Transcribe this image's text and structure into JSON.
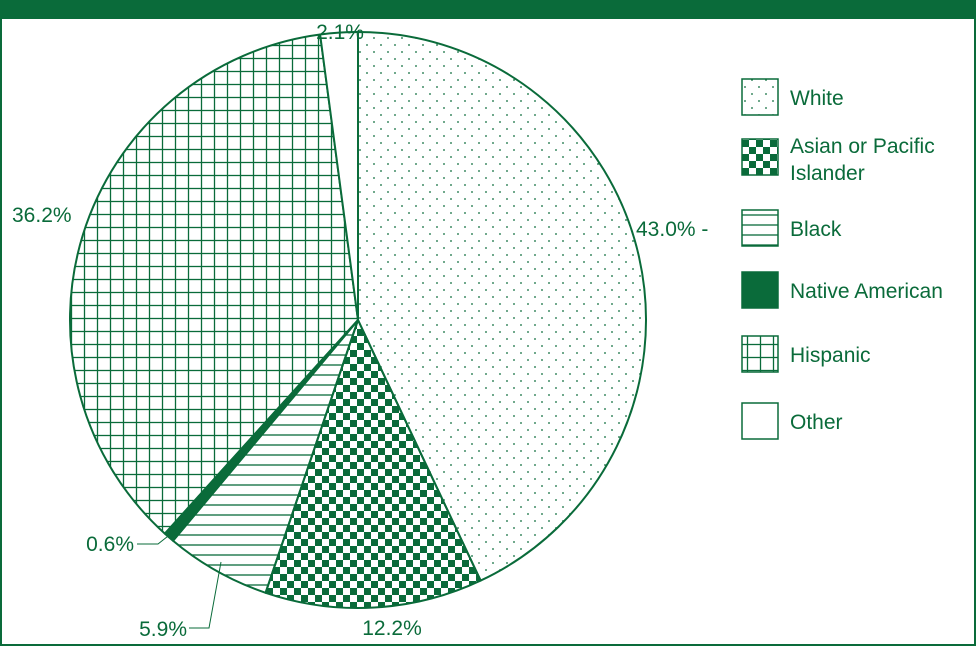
{
  "accent_color": "#0a6b3a",
  "chart_data": {
    "type": "pie",
    "title": "",
    "slices": [
      {
        "label": "White",
        "value": 43.0,
        "value_label": "43.0% -",
        "pattern": "dots"
      },
      {
        "label": "Asian or Pacific Islander",
        "value": 12.2,
        "value_label": "12.2%",
        "pattern": "checker"
      },
      {
        "label": "Black",
        "value": 5.9,
        "value_label": "5.9%",
        "pattern": "hlines"
      },
      {
        "label": "Native American",
        "value": 0.6,
        "value_label": "0.6%",
        "pattern": "solid"
      },
      {
        "label": "Hispanic",
        "value": 36.2,
        "value_label": "36.2%",
        "pattern": "grid"
      },
      {
        "label": "Other",
        "value": 2.1,
        "value_label": "2.1%",
        "pattern": "none"
      }
    ],
    "legend": {
      "position": "right",
      "entries": [
        {
          "lines": [
            "White"
          ],
          "pattern": "dots"
        },
        {
          "lines": [
            "Asian or Pacific",
            "Islander"
          ],
          "pattern": "checker"
        },
        {
          "lines": [
            "Black"
          ],
          "pattern": "hlines"
        },
        {
          "lines": [
            "Native American"
          ],
          "pattern": "solid"
        },
        {
          "lines": [
            "Hispanic"
          ],
          "pattern": "grid"
        },
        {
          "lines": [
            "Other"
          ],
          "pattern": "none"
        }
      ]
    }
  }
}
